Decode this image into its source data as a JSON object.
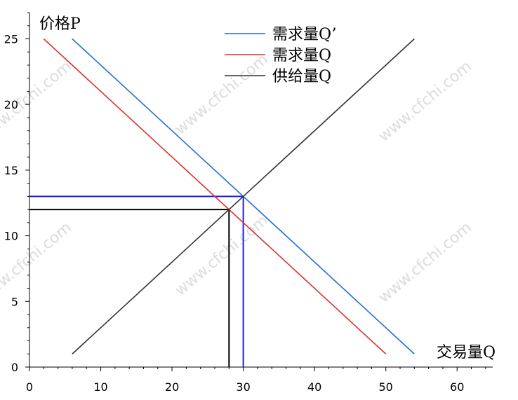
{
  "watermark": "www.cfchi.com",
  "chart_data": {
    "type": "line",
    "xlabel": "交易量Q",
    "ylabel": "价格P",
    "xlim": [
      0,
      65
    ],
    "ylim": [
      0,
      27
    ],
    "xticks": [
      0,
      10,
      20,
      30,
      40,
      50,
      60
    ],
    "yticks": [
      0,
      5,
      10,
      15,
      20,
      25
    ],
    "grid": false,
    "legend_position": "top-center",
    "series": [
      {
        "name": "需求量Q’",
        "color": "#1f6fd9",
        "points": [
          [
            6,
            25
          ],
          [
            54,
            1
          ]
        ]
      },
      {
        "name": "需求量Q",
        "color": "#d93030",
        "points": [
          [
            2,
            25
          ],
          [
            50,
            1
          ]
        ]
      },
      {
        "name": "供给量Q",
        "color": "#333333",
        "points": [
          [
            6,
            1
          ],
          [
            54,
            25
          ]
        ]
      }
    ],
    "guides": [
      {
        "color": "#1f1fd9",
        "points": [
          [
            0,
            13
          ],
          [
            30,
            13
          ],
          [
            30,
            0
          ]
        ]
      },
      {
        "color": "#000000",
        "points": [
          [
            0,
            12
          ],
          [
            28,
            12
          ],
          [
            28,
            0
          ]
        ]
      }
    ]
  }
}
